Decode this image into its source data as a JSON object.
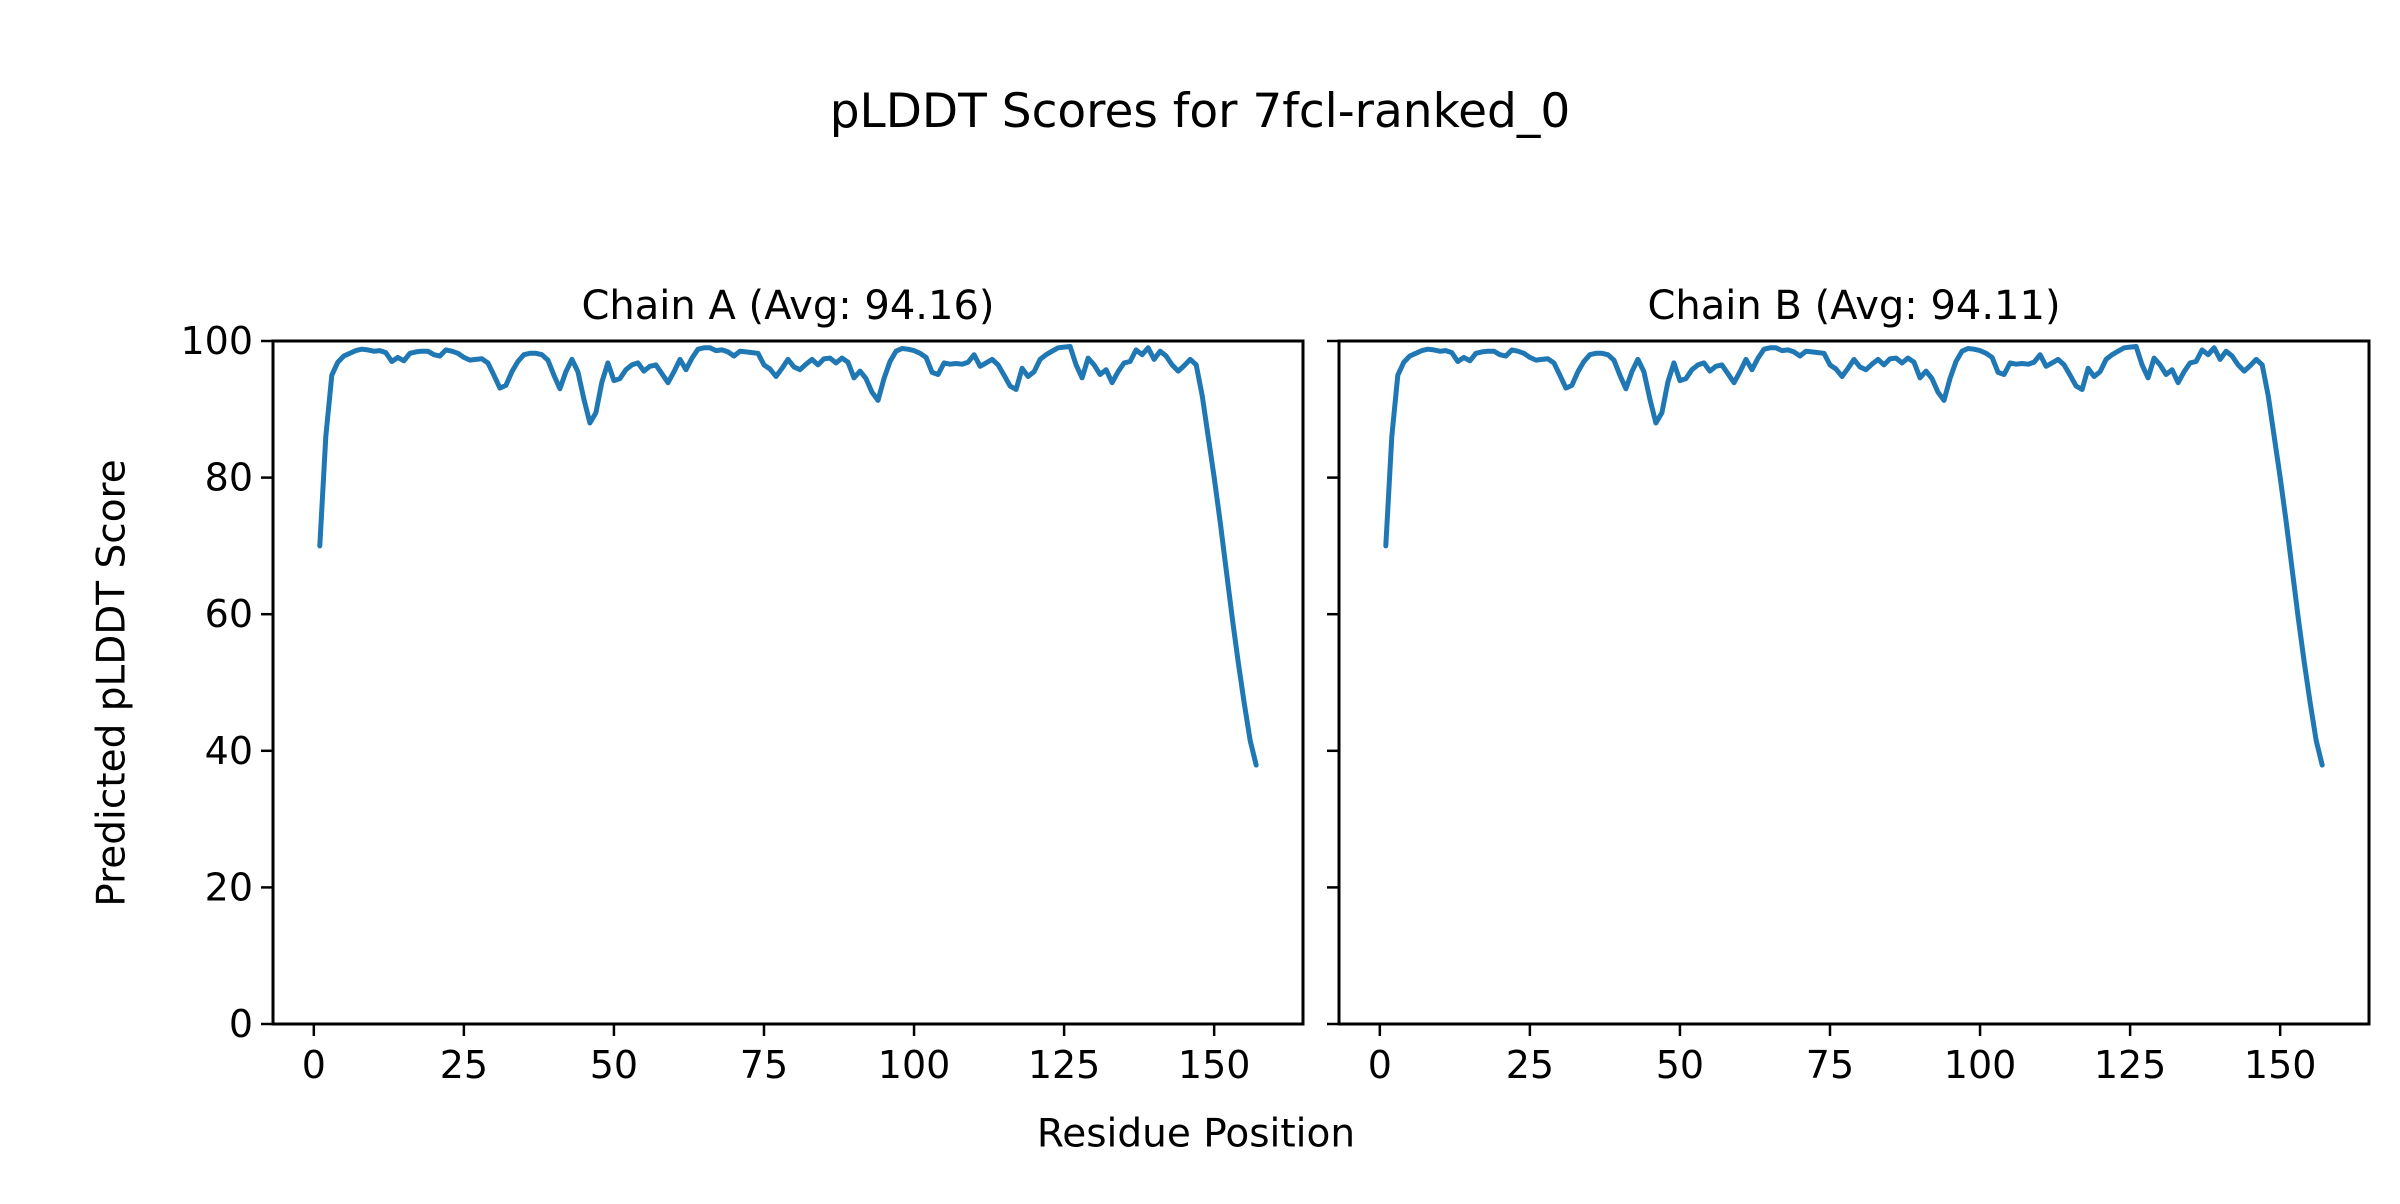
{
  "figure": {
    "title": "pLDDT Scores for 7fcl-ranked_0",
    "xlabel": "Residue Position",
    "ylabel": "Predicted pLDDT Score",
    "background_color": "#ffffff",
    "text_color": "#000000"
  },
  "chart_data": {
    "type": "line",
    "title": "pLDDT Scores for 7fcl-ranked_0",
    "xlabel": "Residue Position",
    "ylabel": "Predicted pLDDT Score",
    "line_color": "#1f77b4",
    "axis_color": "#000000",
    "grid": false,
    "legend": "none",
    "x_start": 1,
    "xlim": [
      -6.8,
      164.8
    ],
    "ylim": [
      0,
      100
    ],
    "xticks": [
      0,
      25,
      50,
      75,
      100,
      125,
      150
    ],
    "yticks": [
      0,
      20,
      40,
      60,
      80,
      100
    ],
    "subplots": [
      {
        "name": "chain-a",
        "title": "Chain A (Avg: 94.16)",
        "avg": 94.16,
        "show_ytick_labels": true,
        "values": [
          70.0,
          86.0,
          95.0,
          96.9,
          97.8,
          98.2,
          98.6,
          98.8,
          98.7,
          98.5,
          98.6,
          98.3,
          97.0,
          97.6,
          97.1,
          98.2,
          98.4,
          98.5,
          98.5,
          98.0,
          97.8,
          98.7,
          98.5,
          98.2,
          97.6,
          97.2,
          97.3,
          97.4,
          96.8,
          95.0,
          93.1,
          93.5,
          95.5,
          97.0,
          98.0,
          98.2,
          98.2,
          98.0,
          97.2,
          95.0,
          93.0,
          95.5,
          97.3,
          95.5,
          91.5,
          88.0,
          89.5,
          94.0,
          96.8,
          94.2,
          94.5,
          95.8,
          96.5,
          96.8,
          95.6,
          96.3,
          96.5,
          95.2,
          93.9,
          95.5,
          97.3,
          95.8,
          97.5,
          98.8,
          99.0,
          99.0,
          98.6,
          98.7,
          98.4,
          97.8,
          98.5,
          98.4,
          98.3,
          98.2,
          96.5,
          95.9,
          94.8,
          96.0,
          97.3,
          96.2,
          95.8,
          96.6,
          97.3,
          96.5,
          97.4,
          97.5,
          96.8,
          97.5,
          96.9,
          94.6,
          95.6,
          94.5,
          92.5,
          91.3,
          94.5,
          97.0,
          98.5,
          98.9,
          98.8,
          98.6,
          98.2,
          97.6,
          95.4,
          95.1,
          96.8,
          96.6,
          96.7,
          96.6,
          96.9,
          98.0,
          96.3,
          96.8,
          97.3,
          96.5,
          95.0,
          93.4,
          92.9,
          96.0,
          94.8,
          95.5,
          97.3,
          98.0,
          98.5,
          99.0,
          99.1,
          99.2,
          96.5,
          94.6,
          97.5,
          96.5,
          95.1,
          95.8,
          93.9,
          95.5,
          96.8,
          97.0,
          98.7,
          98.0,
          99.0,
          97.3,
          98.5,
          97.8,
          96.5,
          95.6,
          96.4,
          97.3,
          96.5,
          92.0,
          86.0,
          80.0,
          73.5,
          66.5,
          59.5,
          53.0,
          47.0,
          41.5,
          37.9
        ]
      },
      {
        "name": "chain-b",
        "title": "Chain B (Avg: 94.11)",
        "avg": 94.11,
        "show_ytick_labels": false,
        "values": [
          70.0,
          86.0,
          95.0,
          96.9,
          97.8,
          98.2,
          98.6,
          98.8,
          98.7,
          98.5,
          98.6,
          98.3,
          97.0,
          97.6,
          97.1,
          98.2,
          98.4,
          98.5,
          98.5,
          98.0,
          97.8,
          98.7,
          98.5,
          98.2,
          97.6,
          97.2,
          97.3,
          97.4,
          96.8,
          95.0,
          93.1,
          93.5,
          95.5,
          97.0,
          98.0,
          98.2,
          98.2,
          98.0,
          97.2,
          95.0,
          93.0,
          95.5,
          97.3,
          95.5,
          91.5,
          88.0,
          89.5,
          94.0,
          96.8,
          94.2,
          94.5,
          95.8,
          96.5,
          96.8,
          95.6,
          96.3,
          96.5,
          95.2,
          93.9,
          95.5,
          97.3,
          95.8,
          97.5,
          98.8,
          99.0,
          99.0,
          98.6,
          98.7,
          98.4,
          97.8,
          98.5,
          98.4,
          98.3,
          98.2,
          96.5,
          95.9,
          94.8,
          96.0,
          97.3,
          96.2,
          95.8,
          96.6,
          97.3,
          96.5,
          97.4,
          97.5,
          96.8,
          97.5,
          96.9,
          94.6,
          95.6,
          94.5,
          92.5,
          91.3,
          94.5,
          97.0,
          98.5,
          98.9,
          98.8,
          98.6,
          98.2,
          97.6,
          95.4,
          95.1,
          96.8,
          96.6,
          96.7,
          96.6,
          96.9,
          98.0,
          96.3,
          96.8,
          97.3,
          96.5,
          95.0,
          93.4,
          92.9,
          96.0,
          94.8,
          95.5,
          97.3,
          98.0,
          98.5,
          99.0,
          99.1,
          99.2,
          96.5,
          94.6,
          97.5,
          96.5,
          95.1,
          95.8,
          93.9,
          95.5,
          96.8,
          97.0,
          98.7,
          98.0,
          99.0,
          97.3,
          98.5,
          97.8,
          96.5,
          95.6,
          96.4,
          97.3,
          96.5,
          92.0,
          86.0,
          80.0,
          73.5,
          66.5,
          59.5,
          53.0,
          47.0,
          41.5,
          37.9
        ]
      }
    ]
  }
}
